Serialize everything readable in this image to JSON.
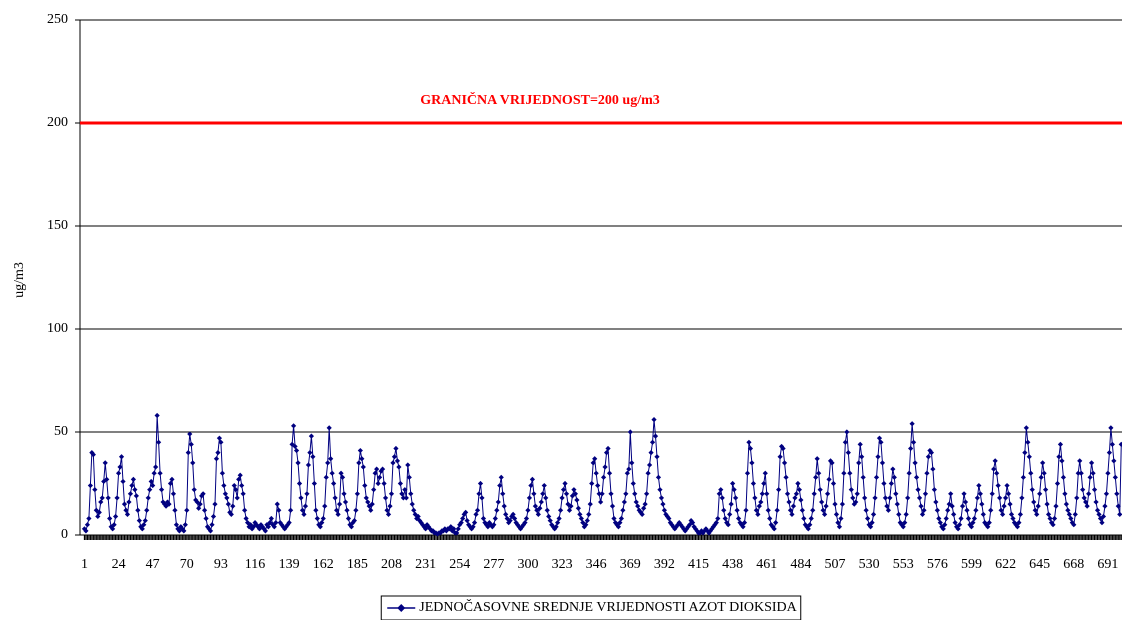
{
  "chart_data": {
    "type": "line",
    "y_label": "ug/m3",
    "threshold": {
      "value": 200,
      "label": "GRANIČNA VRIJEDNOST=200 ug/m3",
      "color": "#ff0000"
    },
    "ylim": [
      0,
      250
    ],
    "yticks": [
      0,
      50,
      100,
      150,
      200,
      250
    ],
    "grid": true,
    "xlim": [
      -2,
      700.5
    ],
    "xticks": [
      1,
      24,
      47,
      70,
      93,
      116,
      139,
      162,
      185,
      208,
      231,
      254,
      277,
      300,
      323,
      346,
      369,
      392,
      415,
      438,
      461,
      484,
      507,
      530,
      553,
      576,
      599,
      622,
      645,
      668,
      691
    ],
    "legend": "bottom",
    "x": [
      1,
      2,
      3,
      4,
      5,
      6,
      7,
      8,
      9,
      10,
      11,
      12,
      13,
      14,
      15,
      16,
      17,
      18,
      19,
      20,
      21,
      22,
      23,
      24,
      25,
      26,
      27,
      28,
      29,
      30,
      31,
      32,
      33,
      34,
      35,
      36,
      37,
      38,
      39,
      40,
      41,
      42,
      43,
      44,
      45,
      46,
      47,
      48,
      49,
      50,
      51,
      52,
      53,
      54,
      55,
      56,
      57,
      58,
      59,
      60,
      61,
      62,
      63,
      64,
      65,
      66,
      67,
      68,
      69,
      70,
      71,
      72,
      73,
      74,
      75,
      76,
      77,
      78,
      79,
      80,
      81,
      82,
      83,
      84,
      85,
      86,
      87,
      88,
      89,
      90,
      91,
      92,
      93,
      94,
      95,
      96,
      97,
      98,
      99,
      100,
      101,
      102,
      103,
      104,
      105,
      106,
      107,
      108,
      109,
      110,
      111,
      112,
      113,
      114,
      115,
      116,
      117,
      118,
      119,
      120,
      121,
      122,
      123,
      124,
      125,
      126,
      127,
      128,
      129,
      130,
      131,
      132,
      133,
      134,
      135,
      136,
      137,
      138,
      139,
      140,
      141,
      142,
      143,
      144,
      145,
      146,
      147,
      148,
      149,
      150,
      151,
      152,
      153,
      154,
      155,
      156,
      157,
      158,
      159,
      160,
      161,
      162,
      163,
      164,
      165,
      166,
      167,
      168,
      169,
      170,
      171,
      172,
      173,
      174,
      175,
      176,
      177,
      178,
      179,
      180,
      181,
      182,
      183,
      184,
      185,
      186,
      187,
      188,
      189,
      190,
      191,
      192,
      193,
      194,
      195,
      196,
      197,
      198,
      199,
      200,
      201,
      202,
      203,
      204,
      205,
      206,
      207,
      208,
      209,
      210,
      211,
      212,
      213,
      214,
      215,
      216,
      217,
      218,
      219,
      220,
      221,
      222,
      223,
      224,
      225,
      226,
      227,
      228,
      229,
      230,
      231,
      232,
      233,
      234,
      235,
      236,
      237,
      238,
      239,
      240,
      241,
      242,
      243,
      244,
      245,
      246,
      247,
      248,
      249,
      250,
      251,
      252,
      253,
      254,
      255,
      256,
      257,
      258,
      259,
      260,
      261,
      262,
      263,
      264,
      265,
      266,
      267,
      268,
      269,
      270,
      271,
      272,
      273,
      274,
      275,
      276,
      277,
      278,
      279,
      280,
      281,
      282,
      283,
      284,
      285,
      286,
      287,
      288,
      289,
      290,
      291,
      292,
      293,
      294,
      295,
      296,
      297,
      298,
      299,
      300,
      301,
      302,
      303,
      304,
      305,
      306,
      307,
      308,
      309,
      310,
      311,
      312,
      313,
      314,
      315,
      316,
      317,
      318,
      319,
      320,
      321,
      322,
      323,
      324,
      325,
      326,
      327,
      328,
      329,
      330,
      331,
      332,
      333,
      334,
      335,
      336,
      337,
      338,
      339,
      340,
      341,
      342,
      343,
      344,
      345,
      346,
      347,
      348,
      349,
      350,
      351,
      352,
      353,
      354,
      355,
      356,
      357,
      358,
      359,
      360,
      361,
      362,
      363,
      364,
      365,
      366,
      367,
      368,
      369,
      370,
      371,
      372,
      373,
      374,
      375,
      376,
      377,
      378,
      379,
      380,
      381,
      382,
      383,
      384,
      385,
      386,
      387,
      388,
      389,
      390,
      391,
      392,
      393,
      394,
      395,
      396,
      397,
      398,
      399,
      400,
      401,
      402,
      403,
      404,
      405,
      406,
      407,
      408,
      409,
      410,
      411,
      412,
      413,
      414,
      415,
      416,
      417,
      418,
      419,
      420,
      421,
      422,
      423,
      424,
      425,
      426,
      427,
      428,
      429,
      430,
      431,
      432,
      433,
      434,
      435,
      436,
      437,
      438,
      439,
      440,
      441,
      442,
      443,
      444,
      445,
      446,
      447,
      448,
      449,
      450,
      451,
      452,
      453,
      454,
      455,
      456,
      457,
      458,
      459,
      460,
      461,
      462,
      463,
      464,
      465,
      466,
      467,
      468,
      469,
      470,
      471,
      472,
      473,
      474,
      475,
      476,
      477,
      478,
      479,
      480,
      481,
      482,
      483,
      484,
      485,
      486,
      487,
      488,
      489,
      490,
      491,
      492,
      493,
      494,
      495,
      496,
      497,
      498,
      499,
      500,
      501,
      502,
      503,
      504,
      505,
      506,
      507,
      508,
      509,
      510,
      511,
      512,
      513,
      514,
      515,
      516,
      517,
      518,
      519,
      520,
      521,
      522,
      523,
      524,
      525,
      526,
      527,
      528,
      529,
      530,
      531,
      532,
      533,
      534,
      535,
      536,
      537,
      538,
      539,
      540,
      541,
      542,
      543,
      544,
      545,
      546,
      547,
      548,
      549,
      550,
      551,
      552,
      553,
      554,
      555,
      556,
      557,
      558,
      559,
      560,
      561,
      562,
      563,
      564,
      565,
      566,
      567,
      568,
      569,
      570,
      571,
      572,
      573,
      574,
      575,
      576,
      577,
      578,
      579,
      580,
      581,
      582,
      583,
      584,
      585,
      586,
      587,
      588,
      589,
      590,
      591,
      592,
      593,
      594,
      595,
      596,
      597,
      598,
      599,
      600,
      601,
      602,
      603,
      604,
      605,
      606,
      607,
      608,
      609,
      610,
      611,
      612,
      613,
      614,
      615,
      616,
      617,
      618,
      619,
      620,
      621,
      622,
      623,
      624,
      625,
      626,
      627,
      628,
      629,
      630,
      631,
      632,
      633,
      634,
      635,
      636,
      637,
      638,
      639,
      640,
      641,
      642,
      643,
      644,
      645,
      646,
      647,
      648,
      649,
      650,
      651,
      652,
      653,
      654,
      655,
      656,
      657,
      658,
      659,
      660,
      661,
      662,
      663,
      664,
      665,
      666,
      667,
      668,
      669,
      670,
      671,
      672,
      673,
      674,
      675,
      676,
      677,
      678,
      679,
      680,
      681,
      682,
      683,
      684,
      685,
      686,
      687,
      688,
      689,
      690,
      691,
      692,
      693,
      694,
      695,
      696,
      697,
      698,
      699,
      700
    ],
    "series": [
      {
        "name": "JEDNOČASOVNE SREDNJE VRIJEDNOSTI AZOT DIOKSIDA",
        "color": "#000080",
        "values": [
          3,
          2,
          5,
          8,
          24,
          40,
          39,
          22,
          12,
          9,
          11,
          16,
          18,
          26,
          35,
          27,
          18,
          8,
          4,
          3,
          5,
          9,
          18,
          30,
          33,
          38,
          26,
          15,
          12,
          10,
          16,
          20,
          24,
          27,
          22,
          19,
          12,
          7,
          4,
          3,
          5,
          7,
          12,
          18,
          22,
          26,
          24,
          30,
          33,
          58,
          45,
          30,
          22,
          16,
          15,
          14,
          16,
          15,
          25,
          27,
          20,
          12,
          5,
          3,
          2,
          4,
          3,
          2,
          5,
          12,
          40,
          49,
          44,
          35,
          22,
          17,
          16,
          13,
          15,
          19,
          20,
          12,
          8,
          4,
          3,
          2,
          5,
          9,
          15,
          37,
          40,
          47,
          45,
          30,
          24,
          20,
          18,
          15,
          11,
          10,
          14,
          24,
          22,
          18,
          27,
          29,
          24,
          20,
          12,
          8,
          6,
          4,
          5,
          3,
          4,
          6,
          5,
          4,
          3,
          5,
          4,
          3,
          2,
          5,
          4,
          6,
          8,
          5,
          4,
          6,
          15,
          12,
          6,
          5,
          4,
          3,
          4,
          5,
          6,
          12,
          44,
          53,
          43,
          41,
          35,
          25,
          18,
          12,
          10,
          14,
          20,
          34,
          40,
          48,
          38,
          25,
          12,
          8,
          5,
          4,
          6,
          8,
          14,
          28,
          35,
          52,
          37,
          30,
          25,
          18,
          12,
          10,
          15,
          30,
          28,
          20,
          16,
          12,
          8,
          5,
          4,
          6,
          7,
          12,
          20,
          35,
          41,
          37,
          33,
          24,
          18,
          16,
          14,
          12,
          15,
          22,
          30,
          32,
          25,
          28,
          31,
          32,
          25,
          18,
          12,
          10,
          14,
          20,
          35,
          38,
          42,
          36,
          33,
          25,
          20,
          18,
          22,
          18,
          34,
          28,
          20,
          15,
          12,
          10,
          8,
          9,
          7,
          6,
          5,
          4,
          3,
          5,
          4,
          3,
          2,
          2,
          1,
          1,
          0.5,
          1,
          1,
          2,
          2,
          3,
          2,
          3,
          3,
          4,
          2,
          3,
          1,
          1,
          3,
          5,
          6,
          8,
          10,
          11,
          7,
          5,
          4,
          3,
          4,
          6,
          10,
          12,
          20,
          25,
          18,
          8,
          6,
          5,
          4,
          6,
          5,
          4,
          5,
          8,
          12,
          16,
          24,
          28,
          20,
          14,
          10,
          8,
          6,
          7,
          9,
          10,
          8,
          6,
          5,
          4,
          3,
          4,
          5,
          6,
          8,
          12,
          18,
          24,
          27,
          20,
          14,
          12,
          10,
          13,
          16,
          20,
          24,
          18,
          12,
          9,
          7,
          5,
          4,
          3,
          4,
          6,
          8,
          12,
          18,
          22,
          25,
          20,
          15,
          12,
          14,
          19,
          22,
          20,
          17,
          13,
          10,
          8,
          6,
          4,
          5,
          7,
          10,
          15,
          25,
          35,
          37,
          30,
          24,
          20,
          16,
          20,
          28,
          33,
          40,
          42,
          30,
          20,
          14,
          8,
          6,
          5,
          4,
          6,
          8,
          12,
          16,
          20,
          30,
          32,
          50,
          35,
          25,
          20,
          16,
          14,
          12,
          11,
          10,
          13,
          15,
          20,
          30,
          34,
          40,
          45,
          56,
          48,
          38,
          28,
          22,
          18,
          15,
          12,
          10,
          9,
          8,
          6,
          5,
          4,
          3,
          4,
          5,
          6,
          5,
          4,
          3,
          2,
          3,
          4,
          5,
          7,
          6,
          4,
          3,
          2,
          1,
          1,
          2,
          1,
          2,
          3,
          2,
          1,
          2,
          3,
          4,
          5,
          6,
          8,
          20,
          22,
          18,
          12,
          8,
          6,
          5,
          10,
          15,
          25,
          22,
          18,
          12,
          8,
          6,
          5,
          4,
          6,
          12,
          30,
          45,
          42,
          35,
          25,
          18,
          12,
          10,
          14,
          16,
          20,
          25,
          30,
          20,
          12,
          8,
          5,
          4,
          3,
          6,
          12,
          22,
          38,
          43,
          42,
          35,
          28,
          20,
          16,
          12,
          10,
          14,
          18,
          20,
          25,
          22,
          17,
          12,
          8,
          5,
          4,
          3,
          5,
          8,
          12,
          20,
          28,
          37,
          30,
          22,
          16,
          12,
          10,
          14,
          20,
          27,
          36,
          35,
          25,
          15,
          10,
          6,
          4,
          8,
          15,
          30,
          45,
          50,
          40,
          30,
          22,
          18,
          15,
          16,
          20,
          35,
          44,
          38,
          28,
          18,
          12,
          8,
          5,
          4,
          6,
          10,
          18,
          28,
          38,
          47,
          45,
          35,
          25,
          18,
          14,
          12,
          18,
          25,
          32,
          28,
          20,
          15,
          10,
          6,
          5,
          4,
          6,
          10,
          18,
          30,
          42,
          54,
          45,
          35,
          28,
          22,
          18,
          14,
          10,
          12,
          20,
          30,
          38,
          41,
          40,
          32,
          22,
          16,
          12,
          8,
          6,
          4,
          3,
          5,
          8,
          12,
          15,
          20,
          14,
          10,
          6,
          4,
          3,
          5,
          8,
          14,
          20,
          16,
          12,
          8,
          5,
          4,
          6,
          8,
          12,
          18,
          24,
          20,
          15,
          10,
          6,
          5,
          4,
          6,
          12,
          20,
          32,
          36,
          30,
          24,
          18,
          12,
          10,
          14,
          18,
          24,
          20,
          15,
          10,
          8,
          6,
          5,
          4,
          6,
          10,
          18,
          28,
          40,
          52,
          45,
          38,
          30,
          22,
          16,
          12,
          10,
          14,
          20,
          28,
          35,
          30,
          22,
          15,
          10,
          8,
          6,
          5,
          8,
          14,
          25,
          38,
          44,
          36,
          28,
          20,
          15,
          12,
          10,
          8,
          6,
          5,
          10,
          18,
          30,
          36,
          30,
          22,
          18,
          16,
          14,
          20,
          28,
          35,
          30,
          22,
          16,
          12,
          10,
          8,
          6,
          9,
          14,
          20,
          30,
          40,
          52,
          44,
          36,
          28,
          20,
          14,
          10,
          44
        ]
      }
    ]
  }
}
